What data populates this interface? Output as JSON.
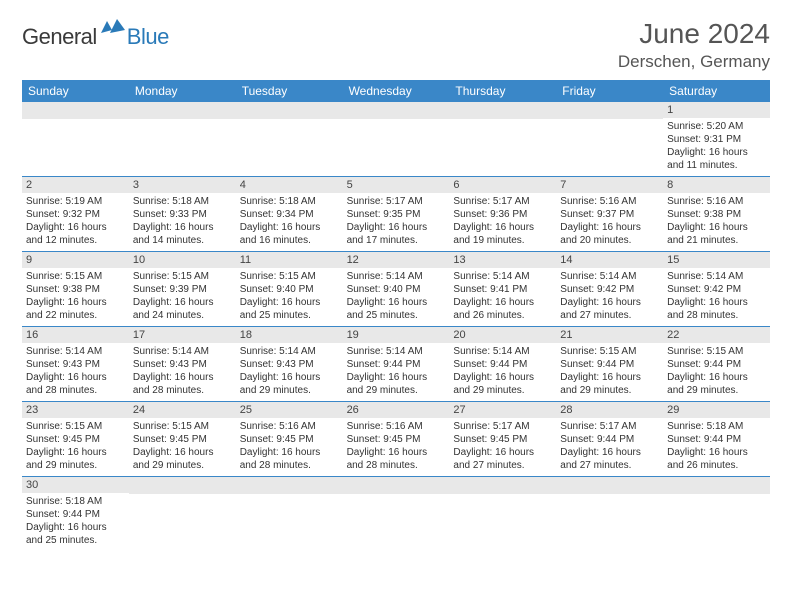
{
  "logo": {
    "textLeft": "General",
    "textRight": "Blue"
  },
  "header": {
    "monthTitle": "June 2024",
    "location": "Derschen, Germany"
  },
  "colors": {
    "headerBar": "#3a87c8",
    "dayBand": "#e8e8e8",
    "rowBorder": "#3a87c8",
    "titleText": "#555555",
    "logoBlue": "#2a7ab8",
    "logoGray": "#3a3a3a"
  },
  "weekdays": [
    "Sunday",
    "Monday",
    "Tuesday",
    "Wednesday",
    "Thursday",
    "Friday",
    "Saturday"
  ],
  "layout": {
    "columns": 7,
    "firstDayOffset": 6,
    "daysInMonth": 30
  },
  "days": [
    {
      "n": 1,
      "sr": "5:20 AM",
      "ss": "9:31 PM",
      "dl": "16 hours and 11 minutes."
    },
    {
      "n": 2,
      "sr": "5:19 AM",
      "ss": "9:32 PM",
      "dl": "16 hours and 12 minutes."
    },
    {
      "n": 3,
      "sr": "5:18 AM",
      "ss": "9:33 PM",
      "dl": "16 hours and 14 minutes."
    },
    {
      "n": 4,
      "sr": "5:18 AM",
      "ss": "9:34 PM",
      "dl": "16 hours and 16 minutes."
    },
    {
      "n": 5,
      "sr": "5:17 AM",
      "ss": "9:35 PM",
      "dl": "16 hours and 17 minutes."
    },
    {
      "n": 6,
      "sr": "5:17 AM",
      "ss": "9:36 PM",
      "dl": "16 hours and 19 minutes."
    },
    {
      "n": 7,
      "sr": "5:16 AM",
      "ss": "9:37 PM",
      "dl": "16 hours and 20 minutes."
    },
    {
      "n": 8,
      "sr": "5:16 AM",
      "ss": "9:38 PM",
      "dl": "16 hours and 21 minutes."
    },
    {
      "n": 9,
      "sr": "5:15 AM",
      "ss": "9:38 PM",
      "dl": "16 hours and 22 minutes."
    },
    {
      "n": 10,
      "sr": "5:15 AM",
      "ss": "9:39 PM",
      "dl": "16 hours and 24 minutes."
    },
    {
      "n": 11,
      "sr": "5:15 AM",
      "ss": "9:40 PM",
      "dl": "16 hours and 25 minutes."
    },
    {
      "n": 12,
      "sr": "5:14 AM",
      "ss": "9:40 PM",
      "dl": "16 hours and 25 minutes."
    },
    {
      "n": 13,
      "sr": "5:14 AM",
      "ss": "9:41 PM",
      "dl": "16 hours and 26 minutes."
    },
    {
      "n": 14,
      "sr": "5:14 AM",
      "ss": "9:42 PM",
      "dl": "16 hours and 27 minutes."
    },
    {
      "n": 15,
      "sr": "5:14 AM",
      "ss": "9:42 PM",
      "dl": "16 hours and 28 minutes."
    },
    {
      "n": 16,
      "sr": "5:14 AM",
      "ss": "9:43 PM",
      "dl": "16 hours and 28 minutes."
    },
    {
      "n": 17,
      "sr": "5:14 AM",
      "ss": "9:43 PM",
      "dl": "16 hours and 28 minutes."
    },
    {
      "n": 18,
      "sr": "5:14 AM",
      "ss": "9:43 PM",
      "dl": "16 hours and 29 minutes."
    },
    {
      "n": 19,
      "sr": "5:14 AM",
      "ss": "9:44 PM",
      "dl": "16 hours and 29 minutes."
    },
    {
      "n": 20,
      "sr": "5:14 AM",
      "ss": "9:44 PM",
      "dl": "16 hours and 29 minutes."
    },
    {
      "n": 21,
      "sr": "5:15 AM",
      "ss": "9:44 PM",
      "dl": "16 hours and 29 minutes."
    },
    {
      "n": 22,
      "sr": "5:15 AM",
      "ss": "9:44 PM",
      "dl": "16 hours and 29 minutes."
    },
    {
      "n": 23,
      "sr": "5:15 AM",
      "ss": "9:45 PM",
      "dl": "16 hours and 29 minutes."
    },
    {
      "n": 24,
      "sr": "5:15 AM",
      "ss": "9:45 PM",
      "dl": "16 hours and 29 minutes."
    },
    {
      "n": 25,
      "sr": "5:16 AM",
      "ss": "9:45 PM",
      "dl": "16 hours and 28 minutes."
    },
    {
      "n": 26,
      "sr": "5:16 AM",
      "ss": "9:45 PM",
      "dl": "16 hours and 28 minutes."
    },
    {
      "n": 27,
      "sr": "5:17 AM",
      "ss": "9:45 PM",
      "dl": "16 hours and 27 minutes."
    },
    {
      "n": 28,
      "sr": "5:17 AM",
      "ss": "9:44 PM",
      "dl": "16 hours and 27 minutes."
    },
    {
      "n": 29,
      "sr": "5:18 AM",
      "ss": "9:44 PM",
      "dl": "16 hours and 26 minutes."
    },
    {
      "n": 30,
      "sr": "5:18 AM",
      "ss": "9:44 PM",
      "dl": "16 hours and 25 minutes."
    }
  ],
  "labels": {
    "sunrise": "Sunrise:",
    "sunset": "Sunset:",
    "daylight": "Daylight:"
  }
}
